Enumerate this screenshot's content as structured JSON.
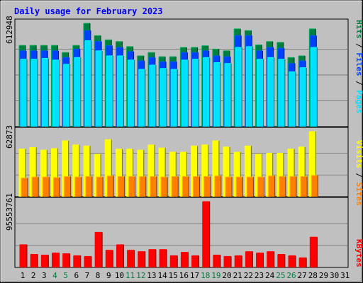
{
  "title": "Daily usage for February 2023",
  "colors": {
    "hits": "#008040",
    "files": "#0040ff",
    "pages": "#00e0ff",
    "visits": "#ffff00",
    "sites": "#ff8000",
    "kbytes": "#ff0000",
    "title": "#0000ff",
    "weekend_label": "#008040",
    "label": "#000000"
  },
  "labels": {
    "right_top": [
      {
        "text": "Hits",
        "color": "#008040"
      },
      {
        "text": " / ",
        "color": "#000000"
      },
      {
        "text": "Files",
        "color": "#0040ff"
      },
      {
        "text": " / ",
        "color": "#000000"
      },
      {
        "text": "Pages",
        "color": "#00e0ff"
      }
    ],
    "right_mid": [
      {
        "text": "Visits",
        "color": "#ffff00"
      },
      {
        "text": " / ",
        "color": "#000000"
      },
      {
        "text": "Sites",
        "color": "#ff8000"
      }
    ],
    "right_bot": [
      {
        "text": "KBytes",
        "color": "#ff0000"
      }
    ]
  },
  "chart_data": [
    {
      "type": "bar",
      "panel": "hits-files-pages",
      "y_max_label": "612948",
      "ylim": [
        0,
        612948
      ],
      "categories": [
        "1",
        "2",
        "3",
        "4",
        "5",
        "6",
        "7",
        "8",
        "9",
        "10",
        "11",
        "12",
        "13",
        "14",
        "15",
        "16",
        "17",
        "18",
        "19",
        "20",
        "21",
        "22",
        "23",
        "24",
        "25",
        "26",
        "27",
        "28",
        "29",
        "30",
        "31"
      ],
      "weekend_days": [
        "4",
        "5",
        "11",
        "12",
        "18",
        "19",
        "25",
        "26"
      ],
      "series": [
        {
          "name": "Hits",
          "values": [
            482000,
            482000,
            482000,
            482000,
            440000,
            482000,
            612948,
            540000,
            515000,
            505000,
            475000,
            420000,
            440000,
            415000,
            415000,
            470000,
            470000,
            480000,
            460000,
            450000,
            580000,
            570000,
            485000,
            505000,
            500000,
            410000,
            420000,
            580000,
            0,
            0,
            0
          ]
        },
        {
          "name": "Files",
          "values": [
            450000,
            450000,
            450000,
            450000,
            410000,
            460000,
            570000,
            505000,
            480000,
            470000,
            445000,
            390000,
            410000,
            385000,
            385000,
            440000,
            440000,
            450000,
            420000,
            415000,
            540000,
            540000,
            450000,
            470000,
            465000,
            375000,
            390000,
            540000,
            0,
            0,
            0
          ]
        },
        {
          "name": "Pages",
          "values": [
            400000,
            400000,
            405000,
            395000,
            370000,
            410000,
            510000,
            450000,
            420000,
            420000,
            395000,
            340000,
            365000,
            345000,
            340000,
            395000,
            400000,
            410000,
            380000,
            375000,
            470000,
            475000,
            400000,
            410000,
            400000,
            325000,
            350000,
            470000,
            0,
            0,
            0
          ]
        }
      ]
    },
    {
      "type": "bar",
      "panel": "visits-sites",
      "y_max_label": "62873",
      "ylim": [
        0,
        62873
      ],
      "categories": [
        "1",
        "2",
        "3",
        "4",
        "5",
        "6",
        "7",
        "8",
        "9",
        "10",
        "11",
        "12",
        "13",
        "14",
        "15",
        "16",
        "17",
        "18",
        "19",
        "20",
        "21",
        "22",
        "23",
        "24",
        "25",
        "26",
        "27",
        "28",
        "29",
        "30",
        "31"
      ],
      "series": [
        {
          "name": "Visits",
          "values": [
            46000,
            47500,
            45000,
            46500,
            54000,
            50000,
            49000,
            41000,
            55000,
            46000,
            46000,
            45000,
            50000,
            47000,
            43000,
            43000,
            49000,
            50000,
            54000,
            48000,
            43000,
            49000,
            41000,
            42000,
            42000,
            46000,
            48000,
            62873,
            0,
            0,
            0
          ]
        },
        {
          "name": "Sites",
          "values": [
            18000,
            19000,
            19000,
            18500,
            19500,
            19000,
            19500,
            19000,
            20000,
            19500,
            19500,
            19500,
            19500,
            19000,
            19500,
            19500,
            19500,
            19500,
            20000,
            19000,
            19000,
            19000,
            19000,
            20000,
            19500,
            19500,
            19500,
            20500,
            0,
            0,
            0
          ]
        }
      ]
    },
    {
      "type": "bar",
      "panel": "kbytes",
      "y_max_label": "95553761",
      "ylim": [
        0,
        95553761
      ],
      "categories": [
        "1",
        "2",
        "3",
        "4",
        "5",
        "6",
        "7",
        "8",
        "9",
        "10",
        "11",
        "12",
        "13",
        "14",
        "15",
        "16",
        "17",
        "18",
        "19",
        "20",
        "21",
        "22",
        "23",
        "24",
        "25",
        "26",
        "27",
        "28",
        "29",
        "30",
        "31"
      ],
      "series": [
        {
          "name": "KBytes",
          "values": [
            33000000,
            19000000,
            18000000,
            21000000,
            20000000,
            17000000,
            16000000,
            51000000,
            25000000,
            33000000,
            25000000,
            23000000,
            26000000,
            26000000,
            17000000,
            22000000,
            17000000,
            95553761,
            18000000,
            16000000,
            17000000,
            23000000,
            21000000,
            23000000,
            19000000,
            17000000,
            14000000,
            44000000,
            0,
            0,
            0
          ]
        }
      ]
    }
  ]
}
